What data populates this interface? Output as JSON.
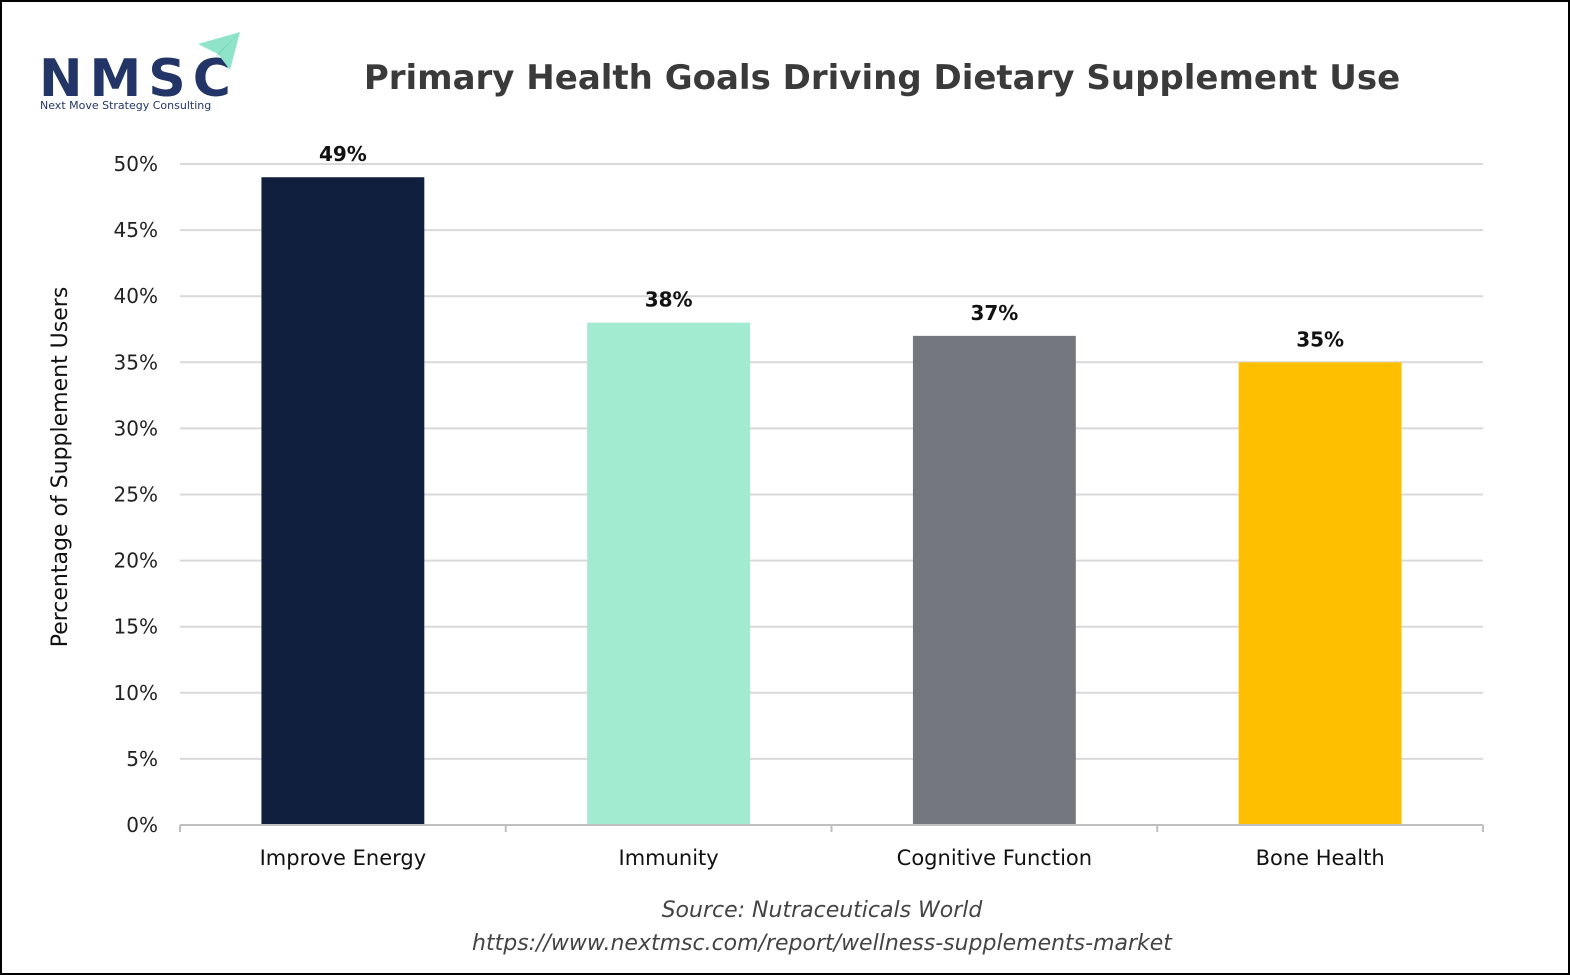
{
  "logo": {
    "letters": "NMSC",
    "subtitle": "Next Move Strategy Consulting",
    "colors": {
      "letters": "#233566",
      "arrow": "#8fe3c9",
      "subtitle": "#233566"
    }
  },
  "source": {
    "line1": "Source: Nutraceuticals World",
    "line2": "https://www.nextmsc.com/report/wellness-supplements-market"
  },
  "chart_data": {
    "type": "bar",
    "title": "Primary Health Goals Driving Dietary Supplement Use",
    "xlabel": "",
    "ylabel": "Percentage of Supplement Users",
    "categories": [
      "Improve Energy",
      "Immunity",
      "Cognitive Function",
      "Bone Health"
    ],
    "values": [
      49,
      38,
      37,
      35
    ],
    "value_labels": [
      "49%",
      "38%",
      "37%",
      "35%"
    ],
    "colors": [
      "#111f3f",
      "#a2ebd1",
      "#74777e",
      "#fdbf00"
    ],
    "ylim": [
      0,
      50
    ],
    "yticks": [
      0,
      5,
      10,
      15,
      20,
      25,
      30,
      35,
      40,
      45,
      50
    ],
    "ytick_labels": [
      "0%",
      "5%",
      "10%",
      "15%",
      "20%",
      "25%",
      "30%",
      "35%",
      "40%",
      "45%",
      "50%"
    ],
    "grid": true,
    "legend": "none"
  }
}
